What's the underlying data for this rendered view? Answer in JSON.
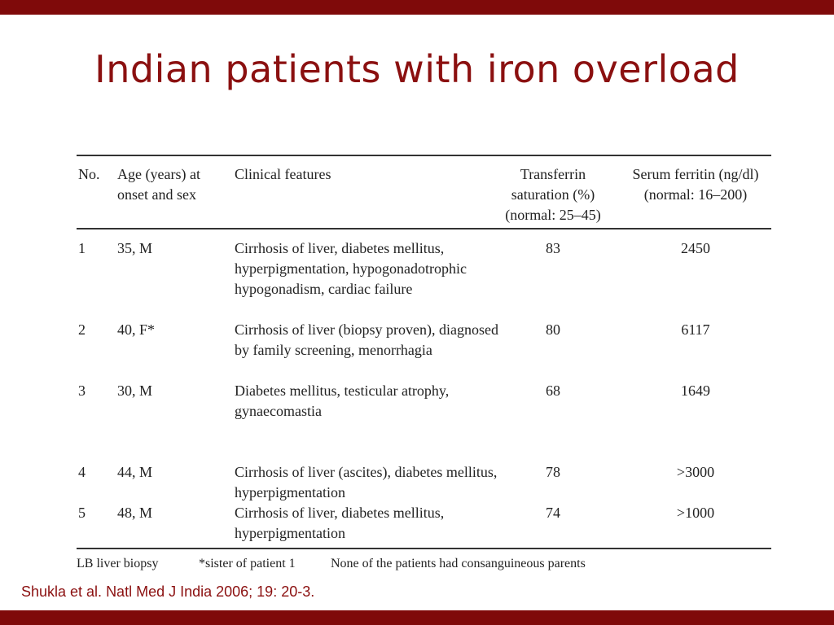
{
  "slide": {
    "title": "Indian patients with iron overload",
    "citation": "Shukla et al. Natl Med J India 2006; 19: 20-3.",
    "accent_color": "#7f0a0a"
  },
  "table": {
    "headers": {
      "no": "No.",
      "age": "Age (years) at onset and sex",
      "clinical": "Clinical features",
      "transferrin": "Transferrin saturation (%) (normal: 25–45)",
      "ferritin": "Serum ferritin (ng/dl) (normal: 16–200)"
    },
    "rows": [
      {
        "no": "1",
        "age": "35, M",
        "clinical": "Cirrhosis of liver, diabetes mellitus, hyperpigmentation, hypogonadotrophic hypogonadism, cardiac failure",
        "transferrin": "83",
        "ferritin": "2450"
      },
      {
        "no": "2",
        "age": "40, F*",
        "clinical": "Cirrhosis of liver (biopsy proven), diagnosed by family screening, menorrhagia",
        "transferrin": "80",
        "ferritin": "6117"
      },
      {
        "no": "3",
        "age": "30, M",
        "clinical": "Diabetes mellitus, testicular atrophy, gynaecomastia",
        "transferrin": "68",
        "ferritin": "1649"
      },
      {
        "no": "4",
        "age": "44, M",
        "clinical": "Cirrhosis of liver (ascites), diabetes mellitus, hyperpigmentation",
        "transferrin": "78",
        "ferritin": ">3000"
      },
      {
        "no": "5",
        "age": "48, M",
        "clinical": "Cirrhosis of liver, diabetes mellitus, hyperpigmentation",
        "transferrin": "74",
        "ferritin": ">1000"
      }
    ],
    "footnotes": [
      "LB liver biopsy",
      "*sister of patient 1",
      "None of the patients had consanguineous parents"
    ]
  }
}
